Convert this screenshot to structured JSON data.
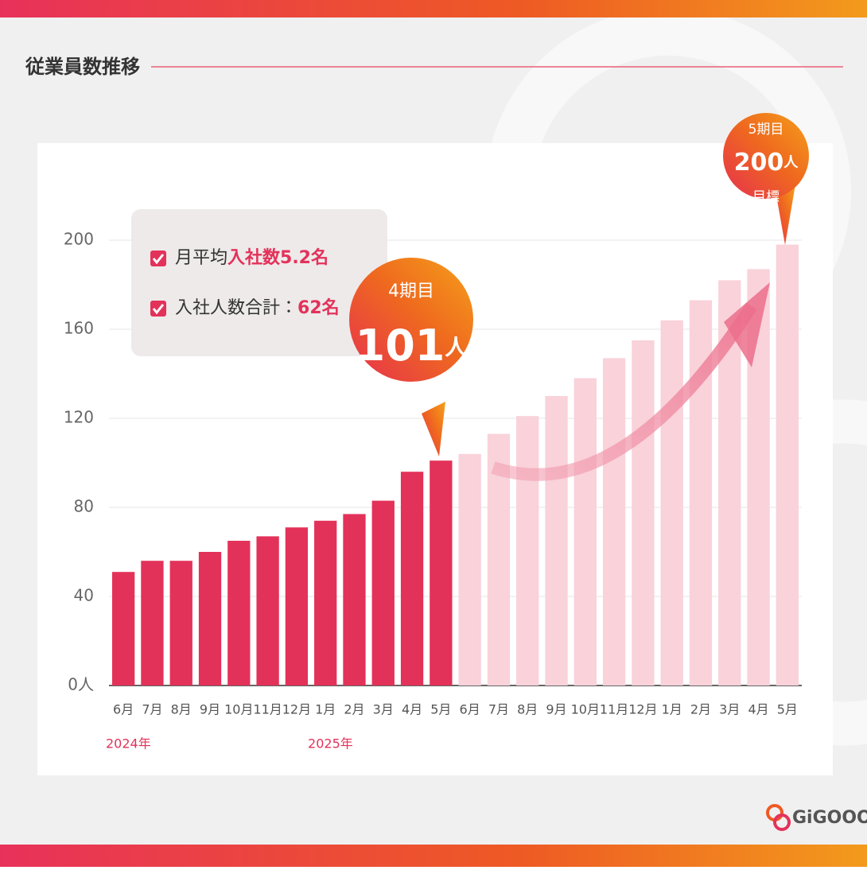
{
  "header": {
    "title": "従業員数推移"
  },
  "chart_data": {
    "type": "bar",
    "categories": [
      "6月",
      "7月",
      "8月",
      "9月",
      "10月",
      "11月",
      "12月",
      "1月",
      "2月",
      "3月",
      "4月",
      "5月",
      "6月",
      "7月",
      "8月",
      "9月",
      "10月",
      "11月",
      "12月",
      "1月",
      "2月",
      "3月",
      "4月",
      "5月"
    ],
    "series": [
      {
        "color": "#e3325a",
        "values": [
          51,
          56,
          56,
          60,
          65,
          67,
          71,
          74,
          77,
          83,
          96,
          101,
          null,
          null,
          null,
          null,
          null,
          null,
          null,
          null,
          null,
          null,
          null,
          null
        ]
      },
      {
        "color": "#f9d2da",
        "values": [
          null,
          null,
          null,
          null,
          null,
          null,
          null,
          null,
          null,
          null,
          null,
          null,
          104,
          113,
          121,
          130,
          138,
          147,
          155,
          164,
          173,
          182,
          187,
          198
        ]
      }
    ],
    "ylim": [
      0,
      200
    ],
    "yticks": [
      {
        "value": 0,
        "label": "0人"
      },
      40,
      80,
      120,
      160,
      200
    ],
    "grid": true,
    "year_labels": [
      {
        "index": 0,
        "label": "2024年"
      },
      {
        "index": 7,
        "label": "2025年"
      }
    ],
    "summary": {
      "line1": {
        "text": "月平均",
        "highlight": "入社数5.2名"
      },
      "line2": {
        "text": "入社人数合計：",
        "highlight": "62名"
      }
    },
    "callouts": [
      {
        "period": "4期目",
        "number": "101",
        "unit": "人"
      },
      {
        "period": "5期目",
        "number": "200",
        "unit": "人",
        "note": "目標"
      }
    ]
  },
  "logo": "GiGOOO"
}
